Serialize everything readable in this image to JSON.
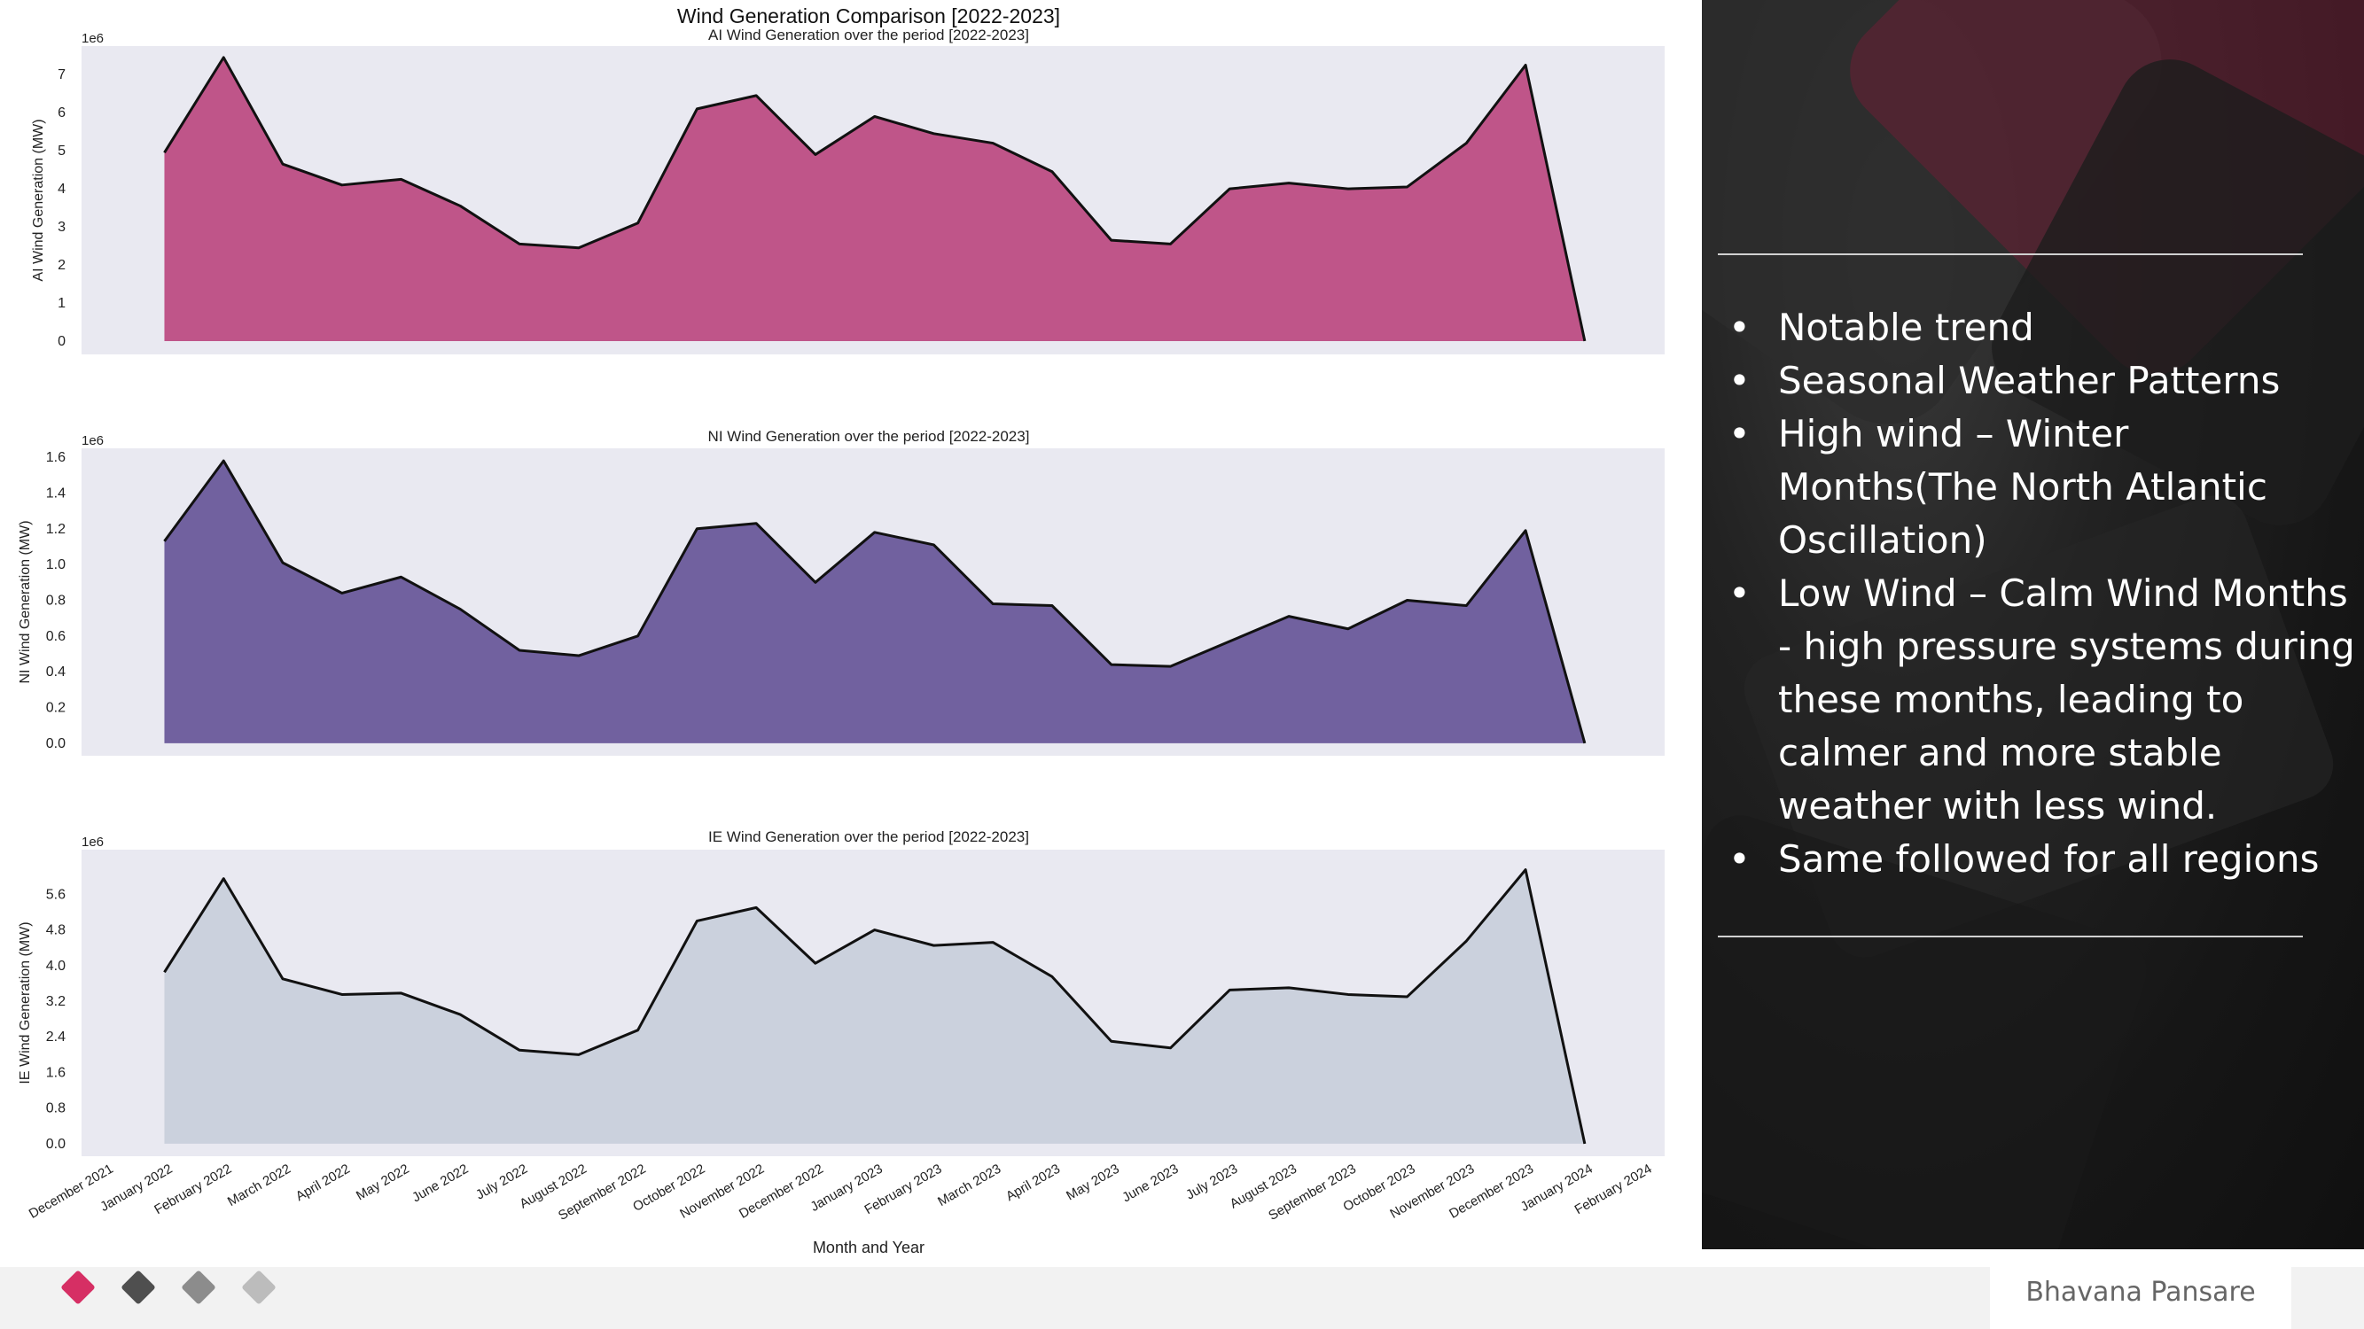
{
  "figure": {
    "suptitle": "Wind Generation Comparison [2022-2023]",
    "xlabel": "Month and Year",
    "x_tick_labels": [
      "December 2021",
      "January 2022",
      "February 2022",
      "March 2022",
      "April 2022",
      "May 2022",
      "June 2022",
      "July 2022",
      "August 2022",
      "September 2022",
      "October 2022",
      "November 2022",
      "December 2022",
      "January 2023",
      "February 2023",
      "March 2023",
      "April 2023",
      "May 2023",
      "June 2023",
      "July 2023",
      "August 2023",
      "September 2023",
      "October 2023",
      "November 2023",
      "December 2023",
      "January 2024",
      "February 2024"
    ]
  },
  "chart_data": [
    {
      "type": "area",
      "title": "AI Wind Generation over the period [2022-2023]",
      "ylabel": "AI Wind Generation (MW)",
      "offset_label": "1e6",
      "x": [
        "2022-01",
        "2022-02",
        "2022-03",
        "2022-04",
        "2022-05",
        "2022-06",
        "2022-07",
        "2022-08",
        "2022-09",
        "2022-10",
        "2022-11",
        "2022-12",
        "2023-01",
        "2023-02",
        "2023-03",
        "2023-04",
        "2023-05",
        "2023-06",
        "2023-07",
        "2023-08",
        "2023-09",
        "2023-10",
        "2023-11",
        "2023-12",
        "2024-01"
      ],
      "values": [
        4.95,
        7.45,
        4.65,
        4.1,
        4.25,
        3.55,
        2.55,
        2.45,
        3.1,
        6.1,
        6.45,
        4.9,
        5.9,
        5.45,
        5.2,
        4.45,
        2.65,
        2.55,
        4.0,
        4.15,
        4.0,
        4.05,
        5.2,
        7.25,
        0.0
      ],
      "yticks": [
        0,
        1,
        2,
        3,
        4,
        5,
        6,
        7
      ],
      "ylim": [
        -0.35,
        7.75
      ],
      "color": "#bf5589"
    },
    {
      "type": "area",
      "title": "NI Wind Generation over the period [2022-2023]",
      "ylabel": "NI Wind Generation (MW)",
      "offset_label": "1e6",
      "x": [
        "2022-01",
        "2022-02",
        "2022-03",
        "2022-04",
        "2022-05",
        "2022-06",
        "2022-07",
        "2022-08",
        "2022-09",
        "2022-10",
        "2022-11",
        "2022-12",
        "2023-01",
        "2023-02",
        "2023-03",
        "2023-04",
        "2023-05",
        "2023-06",
        "2023-07",
        "2023-08",
        "2023-09",
        "2023-10",
        "2023-11",
        "2023-12",
        "2024-01"
      ],
      "values": [
        1.13,
        1.58,
        1.01,
        0.84,
        0.93,
        0.75,
        0.52,
        0.49,
        0.6,
        1.2,
        1.23,
        0.9,
        1.18,
        1.11,
        0.78,
        0.77,
        0.44,
        0.43,
        0.57,
        0.71,
        0.64,
        0.8,
        0.77,
        1.19,
        0.0
      ],
      "yticks": [
        0.0,
        0.2,
        0.4,
        0.6,
        0.8,
        1.0,
        1.2,
        1.4,
        1.6
      ],
      "ylim": [
        -0.07,
        1.65
      ],
      "color": "#71619f"
    },
    {
      "type": "area",
      "title": "IE Wind Generation over the period [2022-2023]",
      "ylabel": "IE Wind Generation (MW)",
      "offset_label": "1e6",
      "x": [
        "2022-01",
        "2022-02",
        "2022-03",
        "2022-04",
        "2022-05",
        "2022-06",
        "2022-07",
        "2022-08",
        "2022-09",
        "2022-10",
        "2022-11",
        "2022-12",
        "2023-01",
        "2023-02",
        "2023-03",
        "2023-04",
        "2023-05",
        "2023-06",
        "2023-07",
        "2023-08",
        "2023-09",
        "2023-10",
        "2023-11",
        "2023-12",
        "2024-01"
      ],
      "values": [
        3.85,
        5.95,
        3.7,
        3.35,
        3.38,
        2.9,
        2.1,
        2.0,
        2.55,
        5.0,
        5.3,
        4.05,
        4.8,
        4.45,
        4.52,
        3.75,
        2.3,
        2.15,
        3.45,
        3.5,
        3.35,
        3.3,
        4.55,
        6.15,
        0.0
      ],
      "yticks": [
        0.0,
        0.8,
        1.6,
        2.4,
        3.2,
        4.0,
        4.8,
        5.6
      ],
      "ylim": [
        -0.28,
        6.6
      ],
      "color": "#cbd1dd"
    }
  ],
  "notes": {
    "bullets": [
      "Notable trend",
      "Seasonal Weather Patterns",
      "High wind – Winter Months(The North Atlantic Oscillation)",
      "Low Wind – Calm Wind Months -  high pressure systems during these months, leading to calmer and more stable weather with less wind.",
      "Same followed for all regions"
    ]
  },
  "footer": {
    "author": "Bhavana Pansare",
    "diamond_colors": [
      "#d62f64",
      "#4f4f4f",
      "#8c8c8c",
      "#bcbcbc"
    ]
  }
}
